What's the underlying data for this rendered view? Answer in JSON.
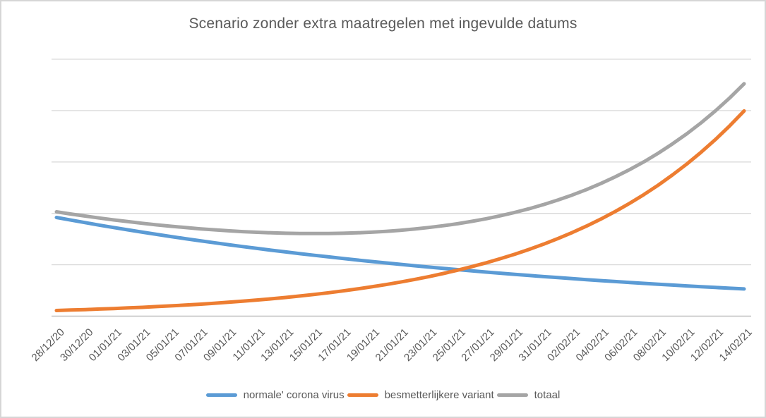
{
  "colors": {
    "background": "#ffffff",
    "border": "#d6d6d6",
    "gridline": "#d9d9d9",
    "axis_line": "#bfbfbf",
    "text": "#595959"
  },
  "chart_data": {
    "type": "line",
    "title": "Scenario zonder extra maatregelen met ingevulde datums",
    "xlabel": "",
    "ylabel": "",
    "ylim": [
      0,
      5
    ],
    "gridlines": "horizontal, step 1, no y-axis tick labels",
    "legend_position": "bottom-center",
    "x_tick_interval_days": 2,
    "x_tick_labels": [
      "28/12/20",
      "30/12/20",
      "01/01/21",
      "03/01/21",
      "05/01/21",
      "07/01/21",
      "09/01/21",
      "11/01/21",
      "13/01/21",
      "15/01/21",
      "17/01/21",
      "19/01/21",
      "21/01/21",
      "23/01/21",
      "25/01/21",
      "27/01/21",
      "29/01/21",
      "31/01/21",
      "02/02/21",
      "04/02/21",
      "06/02/21",
      "08/02/21",
      "10/02/21",
      "12/02/21",
      "14/02/21"
    ],
    "x_unit": "daily data points from 28/12/20 to 14/02/21 (49 days)",
    "series": [
      {
        "name": "normale' corona virus",
        "color": "#5b9bd5",
        "values": [
          1.92,
          1.869,
          1.82,
          1.771,
          1.724,
          1.679,
          1.634,
          1.591,
          1.549,
          1.508,
          1.468,
          1.429,
          1.391,
          1.354,
          1.318,
          1.283,
          1.249,
          1.216,
          1.184,
          1.153,
          1.122,
          1.092,
          1.063,
          1.035,
          1.008,
          0.981,
          0.955,
          0.93,
          0.905,
          0.881,
          0.858,
          0.835,
          0.813,
          0.791,
          0.77,
          0.75,
          0.73,
          0.711,
          0.692,
          0.674,
          0.656,
          0.638,
          0.621,
          0.605,
          0.589,
          0.573,
          0.558,
          0.543,
          0.529
        ]
      },
      {
        "name": "besmetterlijkere variant",
        "color": "#ed7d31",
        "values": [
          0.11,
          0.119,
          0.128,
          0.138,
          0.148,
          0.16,
          0.172,
          0.186,
          0.2,
          0.216,
          0.232,
          0.251,
          0.27,
          0.291,
          0.314,
          0.338,
          0.364,
          0.393,
          0.423,
          0.456,
          0.491,
          0.529,
          0.571,
          0.615,
          0.663,
          0.714,
          0.77,
          0.83,
          0.894,
          0.964,
          1.038,
          1.119,
          1.206,
          1.3,
          1.401,
          1.51,
          1.627,
          1.753,
          1.889,
          2.036,
          2.195,
          2.365,
          2.549,
          2.747,
          2.96,
          3.19,
          3.438,
          3.705,
          3.993
        ]
      },
      {
        "name": "totaal",
        "color": "#a5a5a5",
        "values": [
          2.03,
          1.988,
          1.948,
          1.909,
          1.872,
          1.839,
          1.806,
          1.777,
          1.749,
          1.724,
          1.7,
          1.68,
          1.661,
          1.645,
          1.632,
          1.621,
          1.613,
          1.609,
          1.607,
          1.609,
          1.613,
          1.621,
          1.634,
          1.65,
          1.671,
          1.695,
          1.725,
          1.76,
          1.799,
          1.845,
          1.896,
          1.954,
          2.019,
          2.091,
          2.171,
          2.26,
          2.357,
          2.464,
          2.581,
          2.71,
          2.851,
          3.003,
          3.17,
          3.352,
          3.549,
          3.763,
          3.996,
          4.248,
          4.522
        ]
      }
    ]
  }
}
